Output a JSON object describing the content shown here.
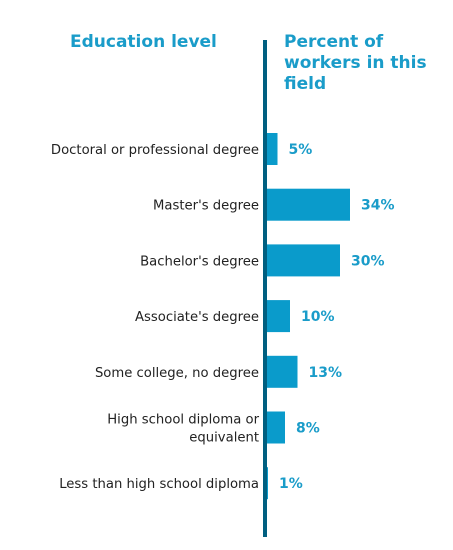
{
  "chart_data": {
    "type": "bar",
    "orientation": "horizontal",
    "category_header": "Education level",
    "value_header": "Percent of workers in this field",
    "categories": [
      [
        "Doctoral or professional degree"
      ],
      [
        "Master's degree"
      ],
      [
        "Bachelor's degree"
      ],
      [
        "Associate's degree"
      ],
      [
        "Some college, no degree"
      ],
      [
        "High school diploma or",
        "equivalent"
      ],
      [
        "Less than high school diploma"
      ]
    ],
    "values": [
      5,
      34,
      30,
      10,
      13,
      8,
      1
    ],
    "value_labels": [
      "5%",
      "34%",
      "30%",
      "10%",
      "13%",
      "8%",
      "1%"
    ],
    "xlim": [
      0,
      40
    ],
    "bar_color": "#0a9bcb",
    "axis_color": "#005f80",
    "label_color": "#1a9cc9",
    "text_color": "#222222"
  }
}
